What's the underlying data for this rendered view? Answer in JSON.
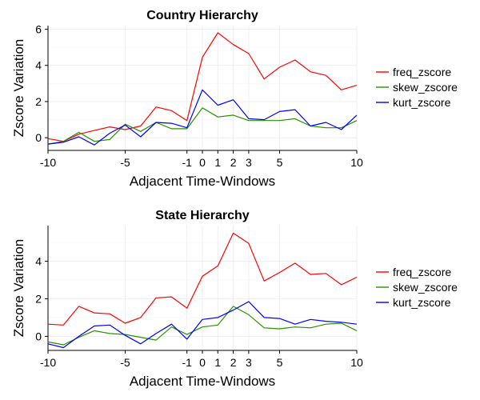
{
  "legend": {
    "position": "right",
    "entries": [
      {
        "label": "freq_zscore",
        "color": "#ff0000"
      },
      {
        "label": "skew_zscore",
        "color": "#2a9000"
      },
      {
        "label": "kurt_zscore",
        "color": "#0000ff"
      }
    ]
  },
  "chart_data": [
    {
      "type": "line",
      "title": "Country Hierarchy",
      "xlabel": "Adjacent Time-Windows",
      "ylabel": "Zscore Variation",
      "xlim": [
        -10,
        10
      ],
      "ylim": [
        -0.7,
        6.2
      ],
      "grid": true,
      "xticks": [
        -10,
        -5,
        -1,
        0,
        1,
        2,
        3,
        5,
        10
      ],
      "yticks": [
        0,
        2,
        4,
        6
      ],
      "x": [
        -10,
        -9,
        -8,
        -7,
        -6,
        -5,
        -4,
        -3,
        -2,
        -1,
        0,
        1,
        2,
        3,
        4,
        5,
        6,
        7,
        8,
        9,
        10
      ],
      "series": [
        {
          "name": "freq_zscore",
          "color": "#ff0000",
          "values": [
            -0.05,
            -0.2,
            0.2,
            0.4,
            0.6,
            0.45,
            0.65,
            1.7,
            1.5,
            0.95,
            4.45,
            5.8,
            5.15,
            4.65,
            3.25,
            3.9,
            4.3,
            3.65,
            3.45,
            2.65,
            2.9
          ]
        },
        {
          "name": "skew_zscore",
          "color": "#2a9000",
          "values": [
            -0.35,
            -0.2,
            0.3,
            -0.2,
            -0.1,
            0.75,
            0.35,
            0.85,
            0.5,
            0.5,
            1.65,
            1.15,
            1.25,
            0.95,
            0.95,
            0.95,
            1.05,
            0.65,
            0.55,
            0.55,
            0.95
          ]
        },
        {
          "name": "kurt_zscore",
          "color": "#0000ff",
          "values": [
            -0.35,
            -0.25,
            0.05,
            -0.4,
            0.25,
            0.7,
            0.05,
            0.85,
            0.8,
            0.55,
            2.65,
            1.8,
            2.1,
            1.05,
            1.0,
            1.45,
            1.55,
            0.65,
            0.85,
            0.45,
            1.25
          ]
        }
      ]
    },
    {
      "type": "line",
      "title": "State Hierarchy",
      "xlabel": "Adjacent Time-Windows",
      "ylabel": "Zscore Variation",
      "xlim": [
        -10,
        10
      ],
      "ylim": [
        -0.75,
        5.9
      ],
      "grid": true,
      "xticks": [
        -10,
        -5,
        -1,
        0,
        1,
        2,
        3,
        5,
        10
      ],
      "yticks": [
        0,
        2,
        4
      ],
      "x": [
        -10,
        -9,
        -8,
        -7,
        -6,
        -5,
        -4,
        -3,
        -2,
        -1,
        0,
        1,
        2,
        3,
        4,
        5,
        6,
        7,
        8,
        9,
        10
      ],
      "series": [
        {
          "name": "freq_zscore",
          "color": "#ff0000",
          "values": [
            0.65,
            0.6,
            1.6,
            1.25,
            1.2,
            0.7,
            1.0,
            2.05,
            2.1,
            1.5,
            3.2,
            3.75,
            5.5,
            4.95,
            2.95,
            3.4,
            3.9,
            3.3,
            3.35,
            2.75,
            3.15
          ]
        },
        {
          "name": "skew_zscore",
          "color": "#2a9000",
          "values": [
            -0.3,
            -0.45,
            -0.05,
            0.3,
            0.15,
            0.1,
            -0.05,
            -0.2,
            0.5,
            0.1,
            0.5,
            0.6,
            1.6,
            1.15,
            0.45,
            0.4,
            0.5,
            0.45,
            0.65,
            0.7,
            0.3
          ]
        },
        {
          "name": "kurt_zscore",
          "color": "#0000ff",
          "values": [
            -0.4,
            -0.6,
            0.0,
            0.55,
            0.6,
            0.05,
            -0.4,
            0.15,
            0.65,
            -0.15,
            0.9,
            1.0,
            1.4,
            1.85,
            1.0,
            0.95,
            0.65,
            0.9,
            0.8,
            0.75,
            0.65
          ]
        }
      ]
    }
  ]
}
